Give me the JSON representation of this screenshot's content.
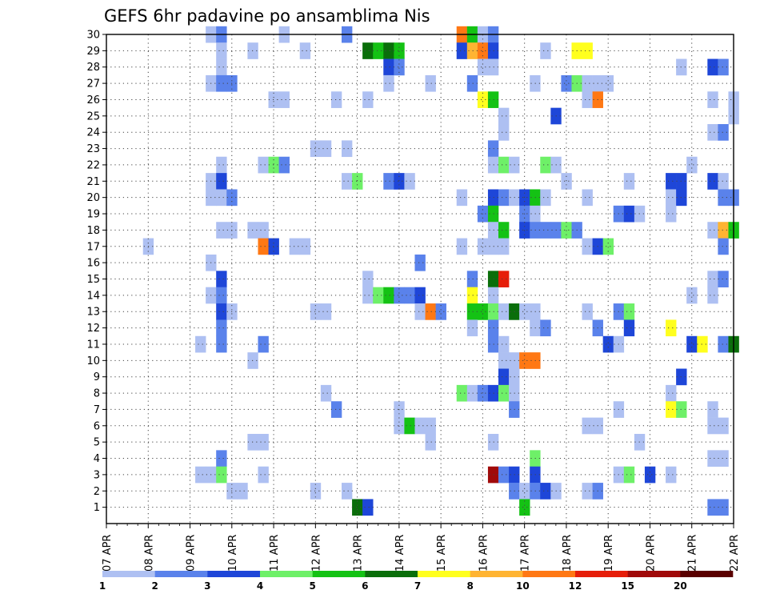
{
  "chart_data": {
    "type": "heatmap",
    "title": "GEFS 6hr padavine po ansamblima Nis",
    "xlabel": "",
    "ylabel": "",
    "x_tick_labels": [
      "07 APR",
      "08 APR",
      "09 APR",
      "10 APR",
      "11 APR",
      "12 APR",
      "13 APR",
      "14 APR",
      "15 APR",
      "16 APR",
      "17 APR",
      "18 APR",
      "19 APR",
      "20 APR",
      "21 APR",
      "22 APR"
    ],
    "y_tick_labels": [
      "1",
      "2",
      "3",
      "4",
      "5",
      "6",
      "7",
      "8",
      "9",
      "10",
      "11",
      "12",
      "13",
      "14",
      "15",
      "16",
      "17",
      "18",
      "19",
      "20",
      "21",
      "22",
      "23",
      "24",
      "25",
      "26",
      "27",
      "28",
      "29",
      "30"
    ],
    "x_range_steps": [
      0,
      60
    ],
    "y_range_members": [
      0,
      30
    ],
    "grid": true,
    "legend_position": "bottom",
    "legend_bins": [
      "1",
      "2",
      "3",
      "4",
      "5",
      "6",
      "7",
      "8",
      "10",
      "12",
      "15",
      "20"
    ],
    "legend_colors": [
      "#aec0f2",
      "#5a82eb",
      "#1e46d8",
      "#6ef068",
      "#14c214",
      "#0a6e0a",
      "#ffff1e",
      "#ffb432",
      "#ff7814",
      "#e61e0a",
      "#a00a0a",
      "#5a0000"
    ],
    "cells": [
      {
        "t": 10,
        "m": 30,
        "c": 1
      },
      {
        "t": 11,
        "m": 30,
        "c": 2
      },
      {
        "t": 17,
        "m": 30,
        "c": 1
      },
      {
        "t": 23,
        "m": 30,
        "c": 2
      },
      {
        "t": 34,
        "m": 30,
        "c": 9
      },
      {
        "t": 35,
        "m": 30,
        "c": 5
      },
      {
        "t": 36,
        "m": 30,
        "c": 1
      },
      {
        "t": 37,
        "m": 30,
        "c": 2
      },
      {
        "t": 11,
        "m": 29,
        "c": 1
      },
      {
        "t": 14,
        "m": 29,
        "c": 1
      },
      {
        "t": 19,
        "m": 29,
        "c": 1
      },
      {
        "t": 25,
        "m": 29,
        "c": 6
      },
      {
        "t": 26,
        "m": 29,
        "c": 5
      },
      {
        "t": 27,
        "m": 29,
        "c": 6
      },
      {
        "t": 28,
        "m": 29,
        "c": 5
      },
      {
        "t": 34,
        "m": 29,
        "c": 3
      },
      {
        "t": 35,
        "m": 29,
        "c": 8
      },
      {
        "t": 36,
        "m": 29,
        "c": 9
      },
      {
        "t": 37,
        "m": 29,
        "c": 3
      },
      {
        "t": 42,
        "m": 29,
        "c": 1
      },
      {
        "t": 45,
        "m": 29,
        "c": 7
      },
      {
        "t": 46,
        "m": 29,
        "c": 7
      },
      {
        "t": 11,
        "m": 28,
        "c": 1
      },
      {
        "t": 27,
        "m": 28,
        "c": 3
      },
      {
        "t": 28,
        "m": 28,
        "c": 2
      },
      {
        "t": 36,
        "m": 28,
        "c": 1
      },
      {
        "t": 37,
        "m": 28,
        "c": 1
      },
      {
        "t": 55,
        "m": 28,
        "c": 1
      },
      {
        "t": 58,
        "m": 28,
        "c": 3
      },
      {
        "t": 59,
        "m": 28,
        "c": 2
      },
      {
        "t": 10,
        "m": 27,
        "c": 1
      },
      {
        "t": 11,
        "m": 27,
        "c": 2
      },
      {
        "t": 12,
        "m": 27,
        "c": 2
      },
      {
        "t": 27,
        "m": 27,
        "c": 1
      },
      {
        "t": 31,
        "m": 27,
        "c": 1
      },
      {
        "t": 35,
        "m": 27,
        "c": 2
      },
      {
        "t": 41,
        "m": 27,
        "c": 1
      },
      {
        "t": 44,
        "m": 27,
        "c": 2
      },
      {
        "t": 45,
        "m": 27,
        "c": 4
      },
      {
        "t": 46,
        "m": 27,
        "c": 1
      },
      {
        "t": 47,
        "m": 27,
        "c": 1
      },
      {
        "t": 48,
        "m": 27,
        "c": 1
      },
      {
        "t": 16,
        "m": 26,
        "c": 1
      },
      {
        "t": 17,
        "m": 26,
        "c": 1
      },
      {
        "t": 22,
        "m": 26,
        "c": 1
      },
      {
        "t": 25,
        "m": 26,
        "c": 1
      },
      {
        "t": 36,
        "m": 26,
        "c": 7
      },
      {
        "t": 37,
        "m": 26,
        "c": 5
      },
      {
        "t": 46,
        "m": 26,
        "c": 1
      },
      {
        "t": 47,
        "m": 26,
        "c": 9
      },
      {
        "t": 58,
        "m": 26,
        "c": 1
      },
      {
        "t": 60,
        "m": 26,
        "c": 1
      },
      {
        "t": 38,
        "m": 25,
        "c": 1
      },
      {
        "t": 43,
        "m": 25,
        "c": 3
      },
      {
        "t": 60,
        "m": 25,
        "c": 1
      },
      {
        "t": 38,
        "m": 24,
        "c": 1
      },
      {
        "t": 58,
        "m": 24,
        "c": 1
      },
      {
        "t": 59,
        "m": 24,
        "c": 2
      },
      {
        "t": 20,
        "m": 23,
        "c": 1
      },
      {
        "t": 21,
        "m": 23,
        "c": 1
      },
      {
        "t": 23,
        "m": 23,
        "c": 1
      },
      {
        "t": 37,
        "m": 23,
        "c": 2
      },
      {
        "t": 11,
        "m": 22,
        "c": 1
      },
      {
        "t": 15,
        "m": 22,
        "c": 1
      },
      {
        "t": 16,
        "m": 22,
        "c": 4
      },
      {
        "t": 17,
        "m": 22,
        "c": 2
      },
      {
        "t": 37,
        "m": 22,
        "c": 1
      },
      {
        "t": 38,
        "m": 22,
        "c": 4
      },
      {
        "t": 39,
        "m": 22,
        "c": 1
      },
      {
        "t": 42,
        "m": 22,
        "c": 4
      },
      {
        "t": 43,
        "m": 22,
        "c": 1
      },
      {
        "t": 56,
        "m": 22,
        "c": 1
      },
      {
        "t": 10,
        "m": 21,
        "c": 1
      },
      {
        "t": 11,
        "m": 21,
        "c": 3
      },
      {
        "t": 23,
        "m": 21,
        "c": 1
      },
      {
        "t": 24,
        "m": 21,
        "c": 4
      },
      {
        "t": 27,
        "m": 21,
        "c": 2
      },
      {
        "t": 28,
        "m": 21,
        "c": 3
      },
      {
        "t": 29,
        "m": 21,
        "c": 1
      },
      {
        "t": 44,
        "m": 21,
        "c": 1
      },
      {
        "t": 50,
        "m": 21,
        "c": 1
      },
      {
        "t": 54,
        "m": 21,
        "c": 3
      },
      {
        "t": 55,
        "m": 21,
        "c": 3
      },
      {
        "t": 58,
        "m": 21,
        "c": 3
      },
      {
        "t": 59,
        "m": 21,
        "c": 1
      },
      {
        "t": 10,
        "m": 20,
        "c": 1
      },
      {
        "t": 11,
        "m": 20,
        "c": 1
      },
      {
        "t": 12,
        "m": 20,
        "c": 2
      },
      {
        "t": 34,
        "m": 20,
        "c": 1
      },
      {
        "t": 37,
        "m": 20,
        "c": 3
      },
      {
        "t": 38,
        "m": 20,
        "c": 2
      },
      {
        "t": 39,
        "m": 20,
        "c": 1
      },
      {
        "t": 40,
        "m": 20,
        "c": 3
      },
      {
        "t": 41,
        "m": 20,
        "c": 5
      },
      {
        "t": 42,
        "m": 20,
        "c": 1
      },
      {
        "t": 46,
        "m": 20,
        "c": 1
      },
      {
        "t": 54,
        "m": 20,
        "c": 1
      },
      {
        "t": 55,
        "m": 20,
        "c": 3
      },
      {
        "t": 59,
        "m": 20,
        "c": 2
      },
      {
        "t": 60,
        "m": 20,
        "c": 2
      },
      {
        "t": 36,
        "m": 19,
        "c": 2
      },
      {
        "t": 37,
        "m": 19,
        "c": 5
      },
      {
        "t": 40,
        "m": 19,
        "c": 2
      },
      {
        "t": 41,
        "m": 19,
        "c": 1
      },
      {
        "t": 49,
        "m": 19,
        "c": 2
      },
      {
        "t": 50,
        "m": 19,
        "c": 3
      },
      {
        "t": 51,
        "m": 19,
        "c": 1
      },
      {
        "t": 54,
        "m": 19,
        "c": 1
      },
      {
        "t": 11,
        "m": 18,
        "c": 1
      },
      {
        "t": 12,
        "m": 18,
        "c": 1
      },
      {
        "t": 14,
        "m": 18,
        "c": 1
      },
      {
        "t": 15,
        "m": 18,
        "c": 1
      },
      {
        "t": 37,
        "m": 18,
        "c": 1
      },
      {
        "t": 38,
        "m": 18,
        "c": 5
      },
      {
        "t": 40,
        "m": 18,
        "c": 3
      },
      {
        "t": 41,
        "m": 18,
        "c": 2
      },
      {
        "t": 42,
        "m": 18,
        "c": 2
      },
      {
        "t": 43,
        "m": 18,
        "c": 2
      },
      {
        "t": 44,
        "m": 18,
        "c": 4
      },
      {
        "t": 45,
        "m": 18,
        "c": 2
      },
      {
        "t": 58,
        "m": 18,
        "c": 1
      },
      {
        "t": 59,
        "m": 18,
        "c": 8
      },
      {
        "t": 60,
        "m": 18,
        "c": 5
      },
      {
        "t": 4,
        "m": 17,
        "c": 1
      },
      {
        "t": 15,
        "m": 17,
        "c": 9
      },
      {
        "t": 16,
        "m": 17,
        "c": 3
      },
      {
        "t": 18,
        "m": 17,
        "c": 1
      },
      {
        "t": 19,
        "m": 17,
        "c": 1
      },
      {
        "t": 34,
        "m": 17,
        "c": 1
      },
      {
        "t": 36,
        "m": 17,
        "c": 1
      },
      {
        "t": 37,
        "m": 17,
        "c": 1
      },
      {
        "t": 38,
        "m": 17,
        "c": 1
      },
      {
        "t": 46,
        "m": 17,
        "c": 1
      },
      {
        "t": 47,
        "m": 17,
        "c": 3
      },
      {
        "t": 48,
        "m": 17,
        "c": 4
      },
      {
        "t": 59,
        "m": 17,
        "c": 2
      },
      {
        "t": 10,
        "m": 16,
        "c": 1
      },
      {
        "t": 30,
        "m": 16,
        "c": 2
      },
      {
        "t": 11,
        "m": 15,
        "c": 3
      },
      {
        "t": 25,
        "m": 15,
        "c": 1
      },
      {
        "t": 35,
        "m": 15,
        "c": 2
      },
      {
        "t": 37,
        "m": 15,
        "c": 6
      },
      {
        "t": 38,
        "m": 15,
        "c": 10
      },
      {
        "t": 58,
        "m": 15,
        "c": 1
      },
      {
        "t": 59,
        "m": 15,
        "c": 2
      },
      {
        "t": 10,
        "m": 14,
        "c": 1
      },
      {
        "t": 11,
        "m": 14,
        "c": 2
      },
      {
        "t": 25,
        "m": 14,
        "c": 1
      },
      {
        "t": 26,
        "m": 14,
        "c": 4
      },
      {
        "t": 27,
        "m": 14,
        "c": 5
      },
      {
        "t": 28,
        "m": 14,
        "c": 2
      },
      {
        "t": 29,
        "m": 14,
        "c": 2
      },
      {
        "t": 30,
        "m": 14,
        "c": 3
      },
      {
        "t": 35,
        "m": 14,
        "c": 7
      },
      {
        "t": 37,
        "m": 14,
        "c": 1
      },
      {
        "t": 56,
        "m": 14,
        "c": 1
      },
      {
        "t": 58,
        "m": 14,
        "c": 1
      },
      {
        "t": 11,
        "m": 13,
        "c": 3
      },
      {
        "t": 12,
        "m": 13,
        "c": 1
      },
      {
        "t": 20,
        "m": 13,
        "c": 1
      },
      {
        "t": 21,
        "m": 13,
        "c": 1
      },
      {
        "t": 30,
        "m": 13,
        "c": 1
      },
      {
        "t": 31,
        "m": 13,
        "c": 9
      },
      {
        "t": 32,
        "m": 13,
        "c": 2
      },
      {
        "t": 35,
        "m": 13,
        "c": 5
      },
      {
        "t": 36,
        "m": 13,
        "c": 5
      },
      {
        "t": 37,
        "m": 13,
        "c": 4
      },
      {
        "t": 38,
        "m": 13,
        "c": 1
      },
      {
        "t": 39,
        "m": 13,
        "c": 6
      },
      {
        "t": 40,
        "m": 13,
        "c": 1
      },
      {
        "t": 41,
        "m": 13,
        "c": 1
      },
      {
        "t": 46,
        "m": 13,
        "c": 1
      },
      {
        "t": 49,
        "m": 13,
        "c": 2
      },
      {
        "t": 50,
        "m": 13,
        "c": 4
      },
      {
        "t": 11,
        "m": 12,
        "c": 2
      },
      {
        "t": 35,
        "m": 12,
        "c": 1
      },
      {
        "t": 37,
        "m": 12,
        "c": 2
      },
      {
        "t": 41,
        "m": 12,
        "c": 1
      },
      {
        "t": 42,
        "m": 12,
        "c": 2
      },
      {
        "t": 47,
        "m": 12,
        "c": 2
      },
      {
        "t": 50,
        "m": 12,
        "c": 3
      },
      {
        "t": 54,
        "m": 12,
        "c": 7
      },
      {
        "t": 9,
        "m": 11,
        "c": 1
      },
      {
        "t": 11,
        "m": 11,
        "c": 2
      },
      {
        "t": 15,
        "m": 11,
        "c": 2
      },
      {
        "t": 37,
        "m": 11,
        "c": 2
      },
      {
        "t": 38,
        "m": 11,
        "c": 1
      },
      {
        "t": 48,
        "m": 11,
        "c": 3
      },
      {
        "t": 49,
        "m": 11,
        "c": 1
      },
      {
        "t": 56,
        "m": 11,
        "c": 3
      },
      {
        "t": 57,
        "m": 11,
        "c": 7
      },
      {
        "t": 59,
        "m": 11,
        "c": 2
      },
      {
        "t": 60,
        "m": 11,
        "c": 6
      },
      {
        "t": 14,
        "m": 10,
        "c": 1
      },
      {
        "t": 38,
        "m": 10,
        "c": 1
      },
      {
        "t": 39,
        "m": 10,
        "c": 1
      },
      {
        "t": 40,
        "m": 10,
        "c": 9
      },
      {
        "t": 41,
        "m": 10,
        "c": 9
      },
      {
        "t": 38,
        "m": 9,
        "c": 3
      },
      {
        "t": 39,
        "m": 9,
        "c": 1
      },
      {
        "t": 55,
        "m": 9,
        "c": 3
      },
      {
        "t": 21,
        "m": 8,
        "c": 1
      },
      {
        "t": 34,
        "m": 8,
        "c": 4
      },
      {
        "t": 35,
        "m": 8,
        "c": 1
      },
      {
        "t": 36,
        "m": 8,
        "c": 2
      },
      {
        "t": 37,
        "m": 8,
        "c": 3
      },
      {
        "t": 38,
        "m": 8,
        "c": 4
      },
      {
        "t": 39,
        "m": 8,
        "c": 1
      },
      {
        "t": 54,
        "m": 8,
        "c": 1
      },
      {
        "t": 22,
        "m": 7,
        "c": 2
      },
      {
        "t": 28,
        "m": 7,
        "c": 1
      },
      {
        "t": 39,
        "m": 7,
        "c": 2
      },
      {
        "t": 49,
        "m": 7,
        "c": 1
      },
      {
        "t": 54,
        "m": 7,
        "c": 7
      },
      {
        "t": 55,
        "m": 7,
        "c": 4
      },
      {
        "t": 58,
        "m": 7,
        "c": 1
      },
      {
        "t": 28,
        "m": 6,
        "c": 1
      },
      {
        "t": 29,
        "m": 6,
        "c": 5
      },
      {
        "t": 30,
        "m": 6,
        "c": 1
      },
      {
        "t": 31,
        "m": 6,
        "c": 1
      },
      {
        "t": 46,
        "m": 6,
        "c": 1
      },
      {
        "t": 47,
        "m": 6,
        "c": 1
      },
      {
        "t": 58,
        "m": 6,
        "c": 1
      },
      {
        "t": 59,
        "m": 6,
        "c": 1
      },
      {
        "t": 14,
        "m": 5,
        "c": 1
      },
      {
        "t": 15,
        "m": 5,
        "c": 1
      },
      {
        "t": 31,
        "m": 5,
        "c": 1
      },
      {
        "t": 37,
        "m": 5,
        "c": 1
      },
      {
        "t": 51,
        "m": 5,
        "c": 1
      },
      {
        "t": 11,
        "m": 4,
        "c": 2
      },
      {
        "t": 41,
        "m": 4,
        "c": 4
      },
      {
        "t": 58,
        "m": 4,
        "c": 1
      },
      {
        "t": 59,
        "m": 4,
        "c": 1
      },
      {
        "t": 9,
        "m": 3,
        "c": 1
      },
      {
        "t": 10,
        "m": 3,
        "c": 1
      },
      {
        "t": 11,
        "m": 3,
        "c": 4
      },
      {
        "t": 15,
        "m": 3,
        "c": 1
      },
      {
        "t": 37,
        "m": 3,
        "c": 11
      },
      {
        "t": 38,
        "m": 3,
        "c": 2
      },
      {
        "t": 39,
        "m": 3,
        "c": 3
      },
      {
        "t": 41,
        "m": 3,
        "c": 3
      },
      {
        "t": 49,
        "m": 3,
        "c": 1
      },
      {
        "t": 50,
        "m": 3,
        "c": 4
      },
      {
        "t": 52,
        "m": 3,
        "c": 3
      },
      {
        "t": 54,
        "m": 3,
        "c": 1
      },
      {
        "t": 12,
        "m": 2,
        "c": 1
      },
      {
        "t": 13,
        "m": 2,
        "c": 1
      },
      {
        "t": 20,
        "m": 2,
        "c": 1
      },
      {
        "t": 23,
        "m": 2,
        "c": 1
      },
      {
        "t": 39,
        "m": 2,
        "c": 2
      },
      {
        "t": 40,
        "m": 2,
        "c": 1
      },
      {
        "t": 41,
        "m": 2,
        "c": 2
      },
      {
        "t": 42,
        "m": 2,
        "c": 3
      },
      {
        "t": 43,
        "m": 2,
        "c": 1
      },
      {
        "t": 46,
        "m": 2,
        "c": 1
      },
      {
        "t": 47,
        "m": 2,
        "c": 2
      },
      {
        "t": 24,
        "m": 1,
        "c": 6
      },
      {
        "t": 25,
        "m": 1,
        "c": 3
      },
      {
        "t": 40,
        "m": 1,
        "c": 5
      },
      {
        "t": 58,
        "m": 1,
        "c": 2
      },
      {
        "t": 59,
        "m": 1,
        "c": 2
      }
    ]
  }
}
